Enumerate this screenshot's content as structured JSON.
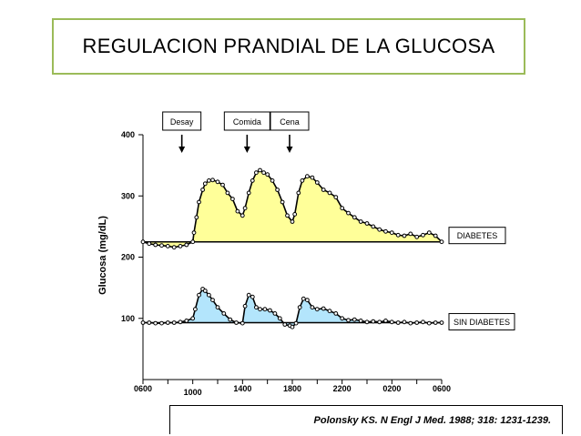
{
  "title": "REGULACION PRANDIAL DE LA GLUCOSA",
  "citation": "Polonsky KS. N Engl J Med. 1988; 318: 1231-1239.",
  "chart_data": {
    "type": "area",
    "ylabel": "Glucosa  (mg/dL)",
    "xlabel": "",
    "ylim": [
      0,
      400
    ],
    "xlim": [
      6,
      30
    ],
    "y_ticks": [
      100,
      200,
      300,
      400
    ],
    "x_ticks": [
      {
        "label": "0600",
        "value": 6
      },
      {
        "label": "1000",
        "value": 10
      },
      {
        "label": "1400",
        "value": 14
      },
      {
        "label": "1800",
        "value": 18
      },
      {
        "label": "2200",
        "value": 22
      },
      {
        "label": "0200",
        "value": 26
      },
      {
        "label": "0600",
        "value": 30
      }
    ],
    "meals": [
      {
        "label": "Desay",
        "time": 10
      },
      {
        "label": "Comida",
        "time": 14
      },
      {
        "label": "Cena",
        "time": 18
      }
    ],
    "series": [
      {
        "name": "DIABETES",
        "baseline": 225,
        "color": "#ffff99",
        "x": [
          6,
          6.5,
          7,
          7.5,
          8,
          8.5,
          9,
          9.5,
          10,
          10.1,
          10.3,
          10.5,
          10.8,
          11,
          11.3,
          11.6,
          12,
          12.4,
          12.8,
          13.2,
          13.6,
          14,
          14.2,
          14.5,
          14.8,
          15.1,
          15.4,
          15.7,
          16,
          16.4,
          16.8,
          17.2,
          17.6,
          18,
          18.2,
          18.5,
          18.8,
          19.2,
          19.6,
          20,
          20.5,
          21,
          21.5,
          22,
          22.5,
          23,
          23.5,
          24,
          24.5,
          25,
          25.5,
          26,
          26.5,
          27,
          27.5,
          28,
          28.5,
          29,
          29.5,
          30
        ],
        "values": [
          225,
          222,
          220,
          219,
          218,
          216,
          218,
          220,
          225,
          240,
          265,
          290,
          310,
          320,
          325,
          326,
          323,
          318,
          305,
          295,
          275,
          268,
          280,
          305,
          325,
          338,
          342,
          338,
          335,
          325,
          310,
          290,
          268,
          258,
          270,
          305,
          325,
          332,
          330,
          322,
          310,
          305,
          298,
          280,
          272,
          265,
          258,
          255,
          250,
          245,
          242,
          240,
          236,
          235,
          238,
          233,
          236,
          240,
          235,
          225
        ]
      },
      {
        "name": "SIN DIABETES",
        "baseline": 93,
        "color": "#b3e5fc",
        "x": [
          6,
          6.5,
          7,
          7.5,
          8,
          8.5,
          9,
          9.5,
          10,
          10.2,
          10.5,
          10.8,
          11,
          11.3,
          11.6,
          12,
          12.5,
          13,
          13.5,
          14,
          14.2,
          14.5,
          14.8,
          15.1,
          15.4,
          15.8,
          16.2,
          16.6,
          17,
          17.4,
          17.8,
          18,
          18.3,
          18.6,
          18.9,
          19.2,
          19.6,
          20,
          20.5,
          21,
          21.5,
          22,
          22.5,
          23,
          23.5,
          24,
          24.5,
          25,
          25.5,
          26,
          26.5,
          27,
          27.5,
          28,
          28.5,
          29,
          29.5,
          30
        ],
        "values": [
          93,
          93,
          92,
          92,
          93,
          93,
          94,
          96,
          100,
          115,
          138,
          148,
          145,
          138,
          130,
          118,
          108,
          98,
          93,
          92,
          120,
          138,
          135,
          118,
          115,
          115,
          113,
          108,
          100,
          90,
          88,
          86,
          92,
          118,
          132,
          130,
          118,
          115,
          116,
          112,
          108,
          100,
          97,
          98,
          96,
          94,
          95,
          94,
          96,
          94,
          93,
          94,
          92,
          93,
          94,
          92,
          93,
          93
        ]
      }
    ]
  }
}
